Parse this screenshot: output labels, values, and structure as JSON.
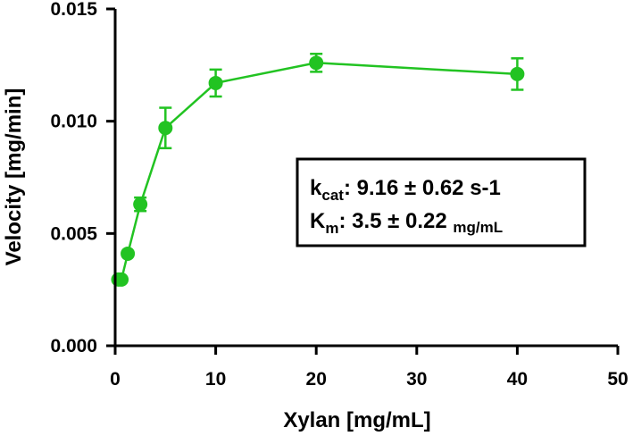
{
  "chart_data": {
    "type": "scatter",
    "xlabel": "Xylan [mg/mL]",
    "ylabel": "Velocity [mg/min]",
    "xlim": [
      0,
      50
    ],
    "ylim": [
      0,
      0.015
    ],
    "xticks": [
      "0",
      "10",
      "20",
      "30",
      "40",
      "50"
    ],
    "yticks": [
      "0.000",
      "0.005",
      "0.010",
      "0.015"
    ],
    "grid": false,
    "series": [
      {
        "color": "#22c322",
        "marker": "circle",
        "connected": true,
        "points": [
          {
            "x": 0.31,
            "y": 0.00295,
            "err": 0.0001
          },
          {
            "x": 0.625,
            "y": 0.00295,
            "err": 0.0001
          },
          {
            "x": 1.25,
            "y": 0.0041,
            "err": 0.0001
          },
          {
            "x": 2.5,
            "y": 0.0063,
            "err": 0.0003
          },
          {
            "x": 5,
            "y": 0.0097,
            "err": 0.0009
          },
          {
            "x": 10,
            "y": 0.0117,
            "err": 0.0006
          },
          {
            "x": 20,
            "y": 0.0126,
            "err": 0.0004
          },
          {
            "x": 40,
            "y": 0.0121,
            "err": 0.0007
          }
        ]
      }
    ],
    "annotation": {
      "lines": [
        {
          "symbol": "k",
          "subscript": "cat",
          "text": ": 9.16 ± 0.62 s-1"
        },
        {
          "symbol": "K",
          "subscript": "m",
          "text": ": 3.5 ± 0.22 ",
          "unit": "mg/mL"
        }
      ]
    }
  }
}
